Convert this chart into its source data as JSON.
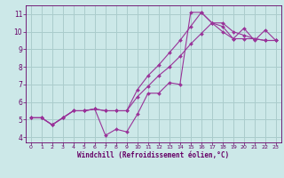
{
  "bg_color": "#cce8e8",
  "grid_color": "#aacccc",
  "line_color": "#993399",
  "marker_color": "#993399",
  "xlabel": "Windchill (Refroidissement éolien,°C)",
  "xlabel_color": "#660066",
  "tick_color": "#660066",
  "xlim": [
    -0.5,
    23.5
  ],
  "ylim": [
    3.7,
    11.5
  ],
  "xticks": [
    0,
    1,
    2,
    3,
    4,
    5,
    6,
    7,
    8,
    9,
    10,
    11,
    12,
    13,
    14,
    15,
    16,
    17,
    18,
    19,
    20,
    21,
    22,
    23
  ],
  "yticks": [
    4,
    5,
    6,
    7,
    8,
    9,
    10,
    11
  ],
  "line1_x": [
    0,
    1,
    2,
    3,
    4,
    5,
    6,
    7,
    8,
    9,
    10,
    11,
    12,
    13,
    14,
    15,
    16,
    17,
    18,
    19,
    20,
    21,
    22,
    23
  ],
  "line1_y": [
    5.1,
    5.1,
    4.7,
    5.1,
    5.5,
    5.5,
    5.6,
    4.1,
    4.45,
    4.3,
    5.3,
    6.5,
    6.5,
    7.1,
    7.0,
    11.1,
    11.1,
    10.5,
    10.3,
    9.6,
    10.2,
    9.5,
    10.1,
    9.5
  ],
  "line2_x": [
    0,
    1,
    2,
    3,
    4,
    5,
    6,
    7,
    8,
    9,
    10,
    11,
    12,
    13,
    14,
    15,
    16,
    17,
    18,
    19,
    20,
    21,
    22,
    23
  ],
  "line2_y": [
    5.1,
    5.1,
    4.7,
    5.1,
    5.5,
    5.5,
    5.6,
    5.5,
    5.5,
    5.5,
    6.3,
    6.9,
    7.5,
    8.0,
    8.6,
    9.3,
    9.9,
    10.5,
    10.5,
    10.0,
    9.8,
    9.6,
    9.5,
    9.5
  ],
  "line3_x": [
    0,
    1,
    2,
    3,
    4,
    5,
    6,
    7,
    8,
    9,
    10,
    11,
    12,
    13,
    14,
    15,
    16,
    17,
    18,
    19,
    20,
    21,
    22,
    23
  ],
  "line3_y": [
    5.1,
    5.1,
    4.7,
    5.1,
    5.5,
    5.5,
    5.6,
    5.5,
    5.5,
    5.5,
    6.7,
    7.5,
    8.1,
    8.8,
    9.5,
    10.3,
    11.1,
    10.5,
    10.0,
    9.6,
    9.6,
    9.6,
    9.5,
    9.5
  ]
}
